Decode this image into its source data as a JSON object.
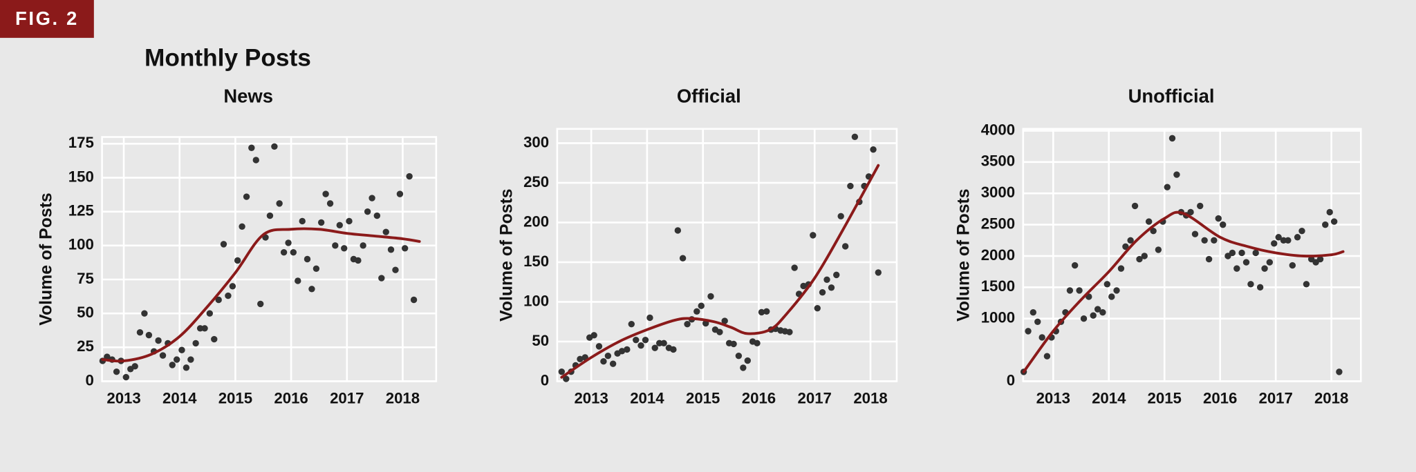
{
  "figure_label": "FIG. 2",
  "title": "Monthly Posts",
  "chart_data": [
    {
      "type": "scatter",
      "title": "News",
      "ylabel": "Volume of Posts",
      "color": "#333333",
      "trend_color": "#8b1a1a",
      "grid": true,
      "xlim": [
        2012.61,
        2018.6
      ],
      "ylim": [
        0,
        180
      ],
      "xticks": [
        2013,
        2014,
        2015,
        2016,
        2017,
        2018
      ],
      "yticks": [
        0,
        25,
        50,
        75,
        100,
        125,
        150,
        175
      ],
      "x": [
        2012.62,
        2012.7,
        2012.79,
        2012.87,
        2012.95,
        2013.04,
        2013.12,
        2013.2,
        2013.29,
        2013.37,
        2013.45,
        2013.54,
        2013.62,
        2013.7,
        2013.79,
        2013.87,
        2013.95,
        2014.04,
        2014.12,
        2014.2,
        2014.29,
        2014.37,
        2014.45,
        2014.54,
        2014.62,
        2014.7,
        2014.79,
        2014.87,
        2014.95,
        2015.04,
        2015.12,
        2015.2,
        2015.29,
        2015.37,
        2015.45,
        2015.54,
        2015.62,
        2015.7,
        2015.79,
        2015.87,
        2015.95,
        2016.04,
        2016.12,
        2016.2,
        2016.29,
        2016.37,
        2016.45,
        2016.54,
        2016.62,
        2016.7,
        2016.79,
        2016.87,
        2016.95,
        2017.04,
        2017.12,
        2017.2,
        2017.29,
        2017.37,
        2017.45,
        2017.54,
        2017.62,
        2017.7,
        2017.79,
        2017.87,
        2017.95,
        2018.04,
        2018.12,
        2018.2
      ],
      "values": [
        15,
        18,
        16,
        7,
        15,
        3,
        9,
        11,
        36,
        50,
        34,
        22,
        30,
        19,
        28,
        12,
        16,
        23,
        10,
        16,
        28,
        39,
        39,
        50,
        31,
        60,
        101,
        63,
        70,
        89,
        114,
        136,
        172,
        163,
        57,
        106,
        122,
        173,
        131,
        95,
        102,
        95,
        74,
        118,
        90,
        68,
        83,
        117,
        138,
        131,
        100,
        115,
        98,
        118,
        90,
        89,
        100,
        125,
        135,
        122,
        76,
        110,
        97,
        82,
        138,
        98,
        151,
        60
      ],
      "trend": {
        "x": [
          2012.62,
          2013.0,
          2013.5,
          2014.0,
          2014.5,
          2015.0,
          2015.5,
          2016.0,
          2016.5,
          2017.0,
          2017.5,
          2018.0,
          2018.3
        ],
        "values": [
          16,
          15,
          20,
          33,
          55,
          80,
          108,
          112,
          112,
          109,
          107,
          105,
          103
        ]
      }
    },
    {
      "type": "scatter",
      "title": "Official",
      "ylabel": "Volume of Posts",
      "color": "#333333",
      "trend_color": "#8b1a1a",
      "grid": true,
      "xlim": [
        2012.39,
        2018.47
      ],
      "ylim": [
        0,
        318
      ],
      "xticks": [
        2013,
        2014,
        2015,
        2016,
        2017,
        2018
      ],
      "yticks": [
        0,
        50,
        100,
        150,
        200,
        250,
        300
      ],
      "x": [
        2012.47,
        2012.55,
        2012.64,
        2012.72,
        2012.8,
        2012.89,
        2012.97,
        2013.05,
        2013.14,
        2013.22,
        2013.3,
        2013.39,
        2013.47,
        2013.55,
        2013.64,
        2013.72,
        2013.8,
        2013.89,
        2013.97,
        2014.05,
        2014.14,
        2014.22,
        2014.3,
        2014.39,
        2014.47,
        2014.55,
        2014.64,
        2014.72,
        2014.8,
        2014.89,
        2014.97,
        2015.05,
        2015.14,
        2015.22,
        2015.3,
        2015.39,
        2015.47,
        2015.55,
        2015.64,
        2015.72,
        2015.8,
        2015.89,
        2015.97,
        2016.05,
        2016.14,
        2016.22,
        2016.3,
        2016.39,
        2016.47,
        2016.55,
        2016.64,
        2016.72,
        2016.8,
        2016.89,
        2016.97,
        2017.05,
        2017.14,
        2017.22,
        2017.3,
        2017.39,
        2017.47,
        2017.55,
        2017.64,
        2017.72,
        2017.8,
        2017.89,
        2017.97,
        2018.05,
        2018.14
      ],
      "values": [
        12,
        3,
        12,
        20,
        28,
        30,
        55,
        58,
        44,
        25,
        32,
        22,
        35,
        38,
        40,
        72,
        52,
        45,
        52,
        80,
        42,
        48,
        48,
        42,
        40,
        190,
        155,
        72,
        78,
        88,
        95,
        73,
        107,
        65,
        62,
        76,
        48,
        47,
        32,
        17,
        26,
        50,
        48,
        87,
        88,
        65,
        66,
        64,
        63,
        62,
        143,
        110,
        120,
        122,
        184,
        92,
        112,
        128,
        118,
        134,
        208,
        170,
        246,
        308,
        226,
        246,
        258,
        292,
        137
      ],
      "trend": {
        "x": [
          2012.47,
          2013.0,
          2013.5,
          2014.0,
          2014.5,
          2014.8,
          2015.2,
          2015.5,
          2015.8,
          2016.2,
          2016.5,
          2017.0,
          2017.5,
          2018.14
        ],
        "values": [
          5,
          30,
          50,
          65,
          77,
          79,
          75,
          68,
          60,
          65,
          85,
          130,
          190,
          272
        ]
      }
    },
    {
      "type": "scatter",
      "title": "Unofficial",
      "ylabel": "Volume of Posts",
      "color": "#333333",
      "trend_color": "#8b1a1a",
      "grid": true,
      "xlim": [
        2012.46,
        2018.53
      ],
      "ylim": [
        0,
        4030
      ],
      "xticks": [
        2013,
        2014,
        2015,
        2016,
        2017,
        2018
      ],
      "yticks": [
        0,
        1000,
        1500,
        2000,
        2500,
        3000,
        3500,
        4000
      ],
      "x": [
        2012.47,
        2012.55,
        2012.64,
        2012.72,
        2012.8,
        2012.89,
        2012.97,
        2013.05,
        2013.14,
        2013.22,
        2013.3,
        2013.39,
        2013.47,
        2013.55,
        2013.64,
        2013.72,
        2013.8,
        2013.89,
        2013.97,
        2014.05,
        2014.14,
        2014.22,
        2014.3,
        2014.39,
        2014.47,
        2014.55,
        2014.64,
        2014.72,
        2014.8,
        2014.89,
        2014.97,
        2015.05,
        2015.14,
        2015.22,
        2015.3,
        2015.39,
        2015.47,
        2015.55,
        2015.64,
        2015.72,
        2015.8,
        2015.89,
        2015.97,
        2016.05,
        2016.14,
        2016.22,
        2016.3,
        2016.39,
        2016.47,
        2016.55,
        2016.64,
        2016.72,
        2016.8,
        2016.89,
        2016.97,
        2017.05,
        2017.14,
        2017.22,
        2017.3,
        2017.39,
        2017.47,
        2017.55,
        2017.64,
        2017.72,
        2017.8,
        2017.89,
        2017.97,
        2018.05,
        2018.14
      ],
      "values": [
        150,
        800,
        1100,
        950,
        700,
        400,
        700,
        800,
        950,
        1100,
        1450,
        1850,
        1450,
        1000,
        1350,
        1050,
        1150,
        1100,
        1550,
        1350,
        1450,
        1800,
        2150,
        2250,
        2800,
        1950,
        2000,
        2550,
        2400,
        2100,
        2550,
        3100,
        3880,
        3300,
        2700,
        2650,
        2700,
        2350,
        2800,
        2250,
        1950,
        2250,
        2600,
        2500,
        2000,
        2050,
        1800,
        2050,
        1900,
        1550,
        2050,
        1500,
        1800,
        1900,
        2200,
        2300,
        2250,
        2250,
        1850,
        2300,
        2400,
        1550,
        1950,
        1900,
        1950,
        2500,
        2700,
        2550,
        150
      ],
      "trend": {
        "x": [
          2012.47,
          2013.0,
          2013.5,
          2014.0,
          2014.5,
          2015.0,
          2015.34,
          2016.0,
          2016.5,
          2017.0,
          2017.5,
          2018.0,
          2018.21
        ],
        "values": [
          150,
          800,
          1300,
          1750,
          2250,
          2600,
          2680,
          2300,
          2150,
          2050,
          2000,
          2020,
          2070
        ]
      }
    }
  ]
}
